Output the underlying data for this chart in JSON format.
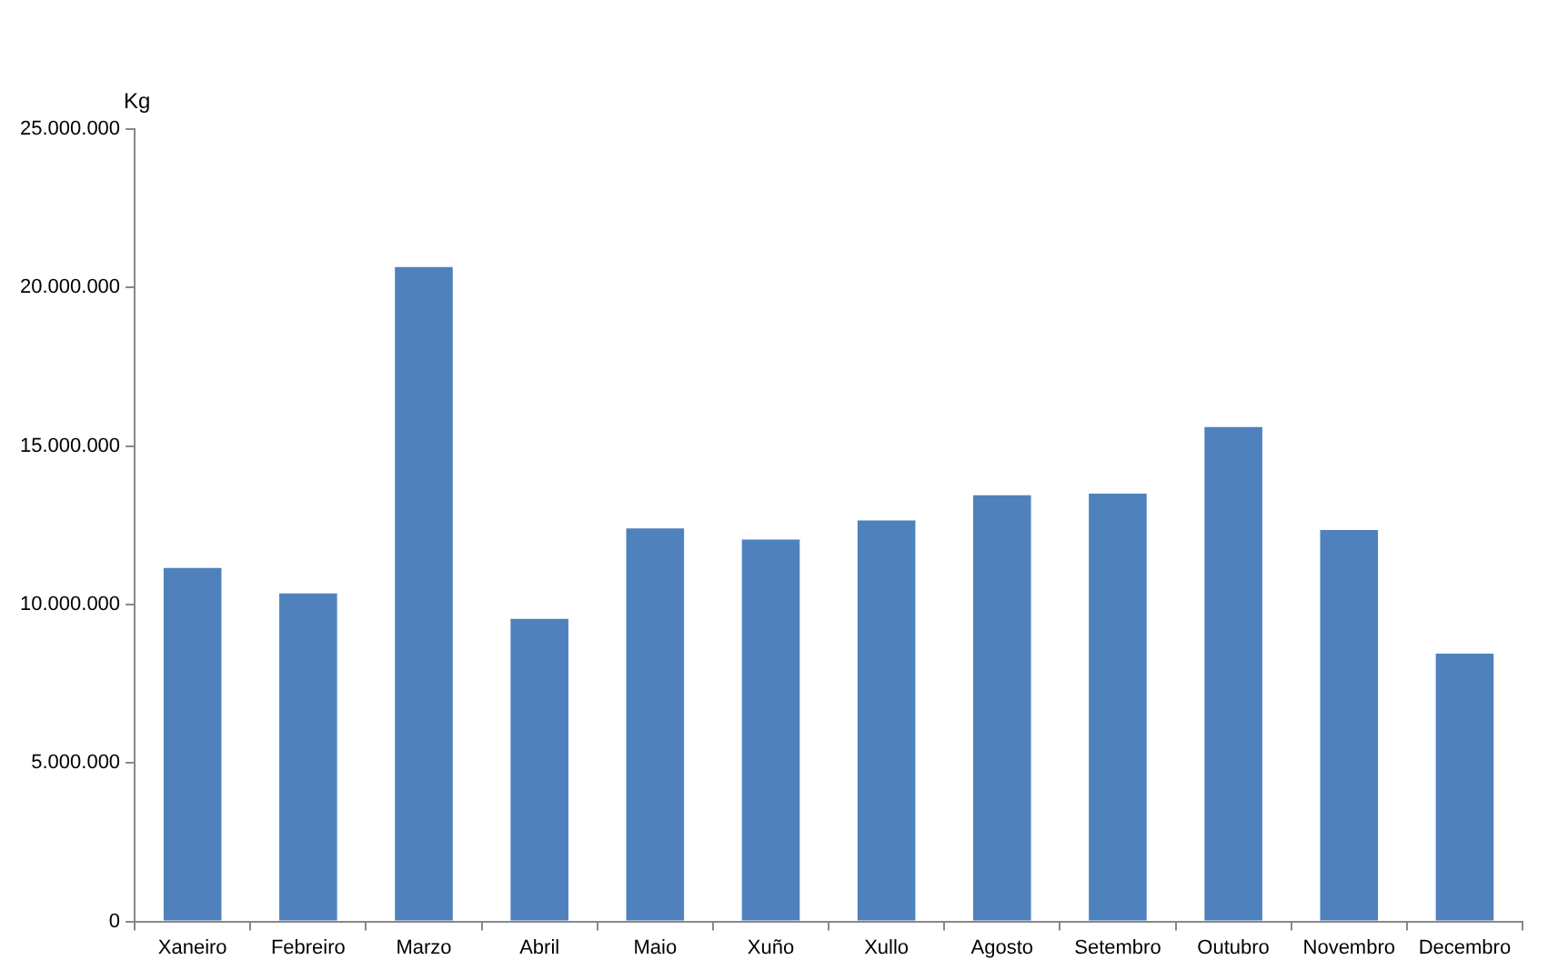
{
  "chart_data": {
    "type": "bar",
    "ylabel": "Kg",
    "categories": [
      "Xaneiro",
      "Febreiro",
      "Marzo",
      "Abril",
      "Maio",
      "Xuño",
      "Xullo",
      "Agosto",
      "Setembro",
      "Outubro",
      "Novembro",
      "Decembro"
    ],
    "values": [
      11150000,
      10350000,
      20650000,
      9550000,
      12400000,
      12050000,
      12650000,
      13450000,
      13500000,
      15600000,
      12350000,
      8450000
    ],
    "color": "#4f81bd",
    "ylim": [
      0,
      25000000
    ],
    "yticks": [
      {
        "value": 0,
        "label": "0"
      },
      {
        "value": 5000000,
        "label": "5.000.000"
      },
      {
        "value": 10000000,
        "label": "10.000.000"
      },
      {
        "value": 15000000,
        "label": "15.000.000"
      },
      {
        "value": 20000000,
        "label": "20.000.000"
      },
      {
        "value": 25000000,
        "label": "25.000.000"
      }
    ],
    "grid": false,
    "legend": false
  }
}
